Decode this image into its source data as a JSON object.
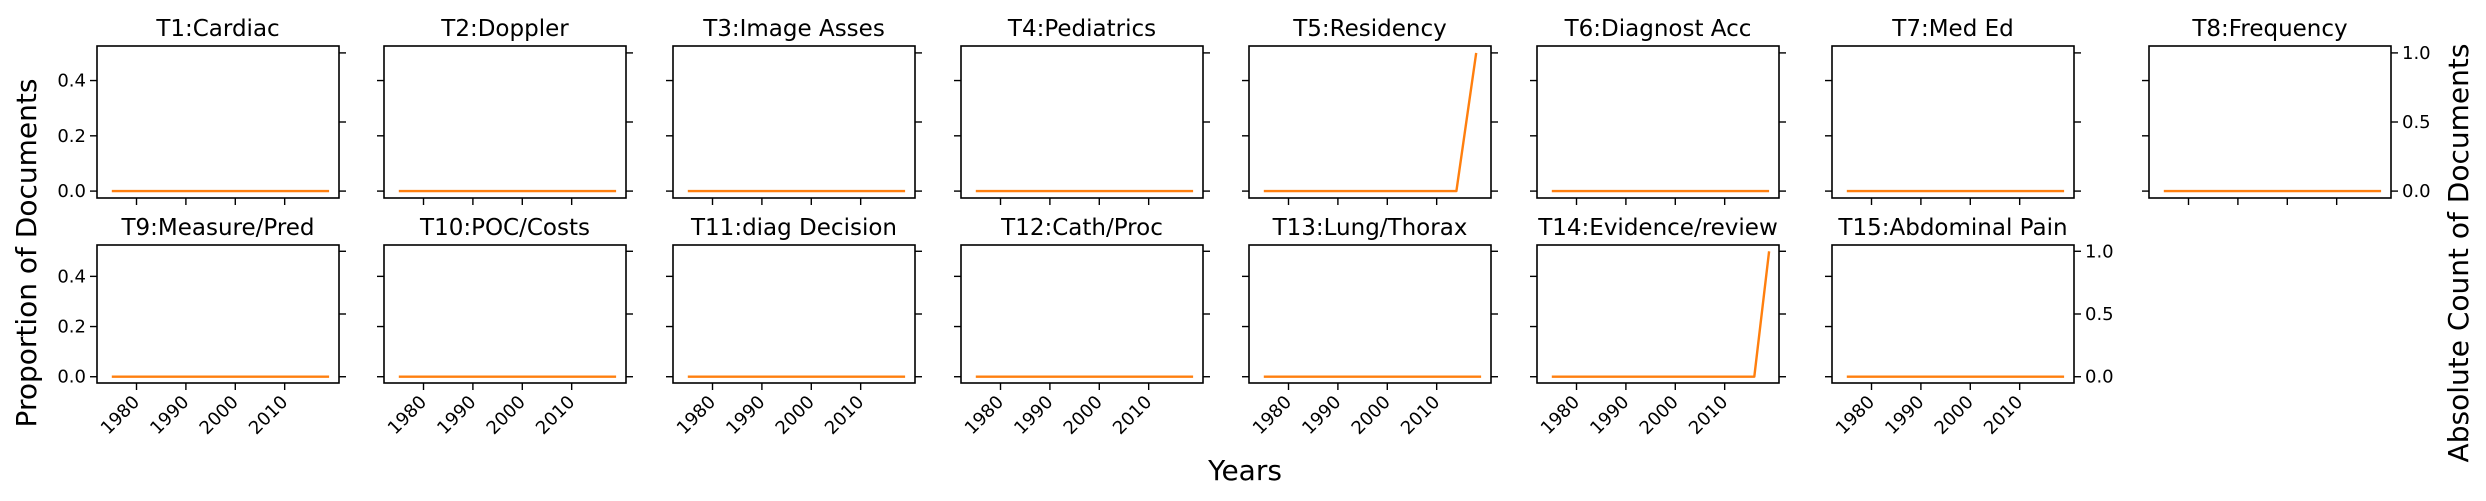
{
  "figure": {
    "xlabel": "Years",
    "ylabel_left": "Proportion of Documents",
    "ylabel_right": "Absolute Count of Documents"
  },
  "colors": {
    "line": "#ff7f0e",
    "axes": "#000000"
  },
  "chart_data": [
    {
      "type": "line",
      "title": "T1:Cardiac",
      "x": [
        1975,
        2015,
        2019
      ],
      "y": [
        0,
        0,
        0
      ]
    },
    {
      "type": "line",
      "title": "T2:Doppler",
      "x": [
        1975,
        2015,
        2019
      ],
      "y": [
        0,
        0,
        0
      ]
    },
    {
      "type": "line",
      "title": "T3:Image Asses",
      "x": [
        1975,
        2015,
        2019
      ],
      "y": [
        0,
        0,
        0
      ]
    },
    {
      "type": "line",
      "title": "T4:Pediatrics",
      "x": [
        1975,
        2015,
        2019
      ],
      "y": [
        0,
        0,
        0
      ]
    },
    {
      "type": "line",
      "title": "T5:Residency",
      "x": [
        1975,
        2014,
        2018
      ],
      "y": [
        0,
        0,
        1
      ]
    },
    {
      "type": "line",
      "title": "T6:Diagnost Acc",
      "x": [
        1975,
        2015,
        2019
      ],
      "y": [
        0,
        0,
        0
      ]
    },
    {
      "type": "line",
      "title": "T7:Med Ed",
      "x": [
        1975,
        2015,
        2019
      ],
      "y": [
        0,
        0,
        0
      ]
    },
    {
      "type": "line",
      "title": "T8:Frequency",
      "x": [
        1975,
        2015,
        2019
      ],
      "y": [
        0,
        0,
        0
      ]
    },
    {
      "type": "line",
      "title": "T9:Measure/Pred",
      "x": [
        1975,
        2015,
        2019
      ],
      "y": [
        0,
        0,
        0
      ]
    },
    {
      "type": "line",
      "title": "T10:POC/Costs",
      "x": [
        1975,
        2015,
        2019
      ],
      "y": [
        0,
        0,
        0
      ]
    },
    {
      "type": "line",
      "title": "T11:diag Decision",
      "x": [
        1975,
        2015,
        2019
      ],
      "y": [
        0,
        0,
        0
      ]
    },
    {
      "type": "line",
      "title": "T12:Cath/Proc",
      "x": [
        1975,
        2015,
        2019
      ],
      "y": [
        0,
        0,
        0
      ]
    },
    {
      "type": "line",
      "title": "T13:Lung/Thorax",
      "x": [
        1975,
        2015,
        2019
      ],
      "y": [
        0,
        0,
        0
      ]
    },
    {
      "type": "line",
      "title": "T14:Evidence/review",
      "x": [
        1975,
        2016,
        2019
      ],
      "y": [
        0,
        0,
        1
      ]
    },
    {
      "type": "line",
      "title": "T15:Abdominal Pain",
      "x": [
        1975,
        2015,
        2019
      ],
      "y": [
        0,
        0,
        0
      ]
    }
  ],
  "axes": {
    "xlim": [
      1972,
      2021
    ],
    "xticks": [
      1980,
      1990,
      2000,
      2010
    ],
    "xtick_labels": [
      "1980",
      "1990",
      "2000",
      "2010"
    ],
    "ylim_left": [
      -0.025,
      0.525
    ],
    "yticks_left": [
      0.0,
      0.2,
      0.4
    ],
    "ytick_labels_left": [
      "0.0",
      "0.2",
      "0.4"
    ],
    "ylim_right": [
      -0.05,
      1.05
    ],
    "yticks_right": [
      0.0,
      0.5,
      1.0
    ],
    "ytick_labels_right": [
      "0.0",
      "0.5",
      "1.0"
    ]
  }
}
